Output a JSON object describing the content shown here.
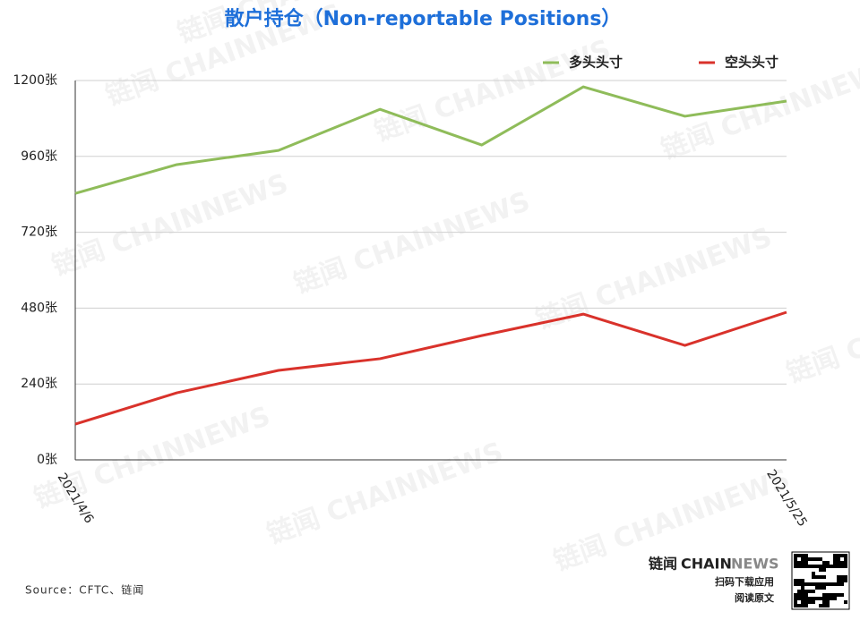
{
  "chart_data": {
    "type": "line",
    "title": "散户持仓（Non-reportable Positions）",
    "categories": [
      "2021/4/6",
      null,
      null,
      null,
      null,
      null,
      null,
      "2021/5/25"
    ],
    "series": [
      {
        "name": "多头头寸",
        "color": "#8fbc5a",
        "values": [
          843,
          934,
          979,
          1109,
          996,
          1180,
          1087,
          1135
        ]
      },
      {
        "name": "空头头寸",
        "color": "#d9322b",
        "values": [
          113,
          212,
          283,
          320,
          393,
          461,
          362,
          467
        ]
      }
    ],
    "ylim": [
      0,
      1200
    ],
    "yticks": [
      {
        "value": 0,
        "label": "0张"
      },
      {
        "value": 240,
        "label": "240张"
      },
      {
        "value": 480,
        "label": "480张"
      },
      {
        "value": 720,
        "label": "720张"
      },
      {
        "value": 960,
        "label": "960张"
      },
      {
        "value": 1200,
        "label": "1200张"
      }
    ],
    "grid": true,
    "legend": "top-right",
    "source": "Source：CFTC、链闻",
    "brand": {
      "name": "链闻",
      "latin": "CHAIN",
      "latin2": "NEWS",
      "line1": "扫码下载应用",
      "line2": "阅读原文"
    },
    "watermark": "链闻 CHAINNEWS"
  }
}
